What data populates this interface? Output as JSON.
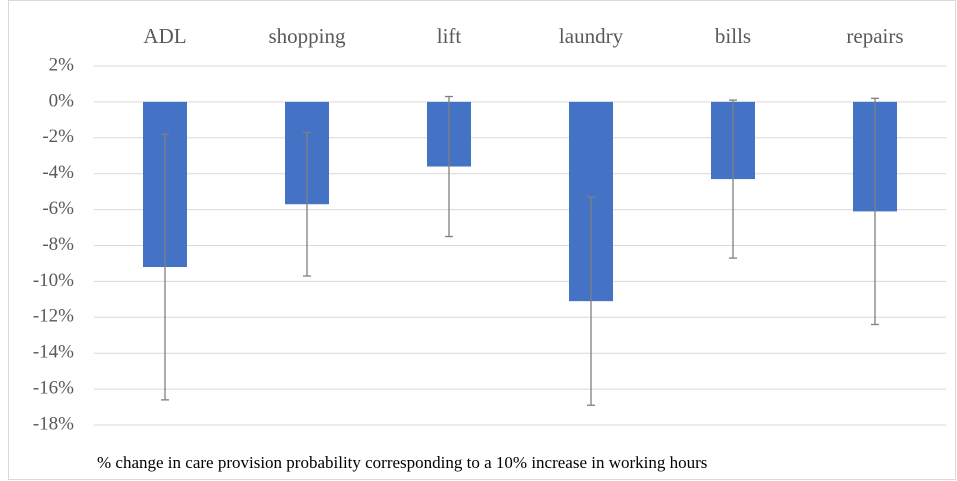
{
  "chart_data": {
    "type": "bar",
    "categories": [
      "ADL",
      "shopping",
      "lift",
      "laundry",
      "bills",
      "repairs"
    ],
    "values": [
      -9.2,
      -5.7,
      -3.6,
      -11.1,
      -4.3,
      -6.1
    ],
    "errors": [
      7.4,
      4.0,
      3.9,
      5.8,
      4.4,
      6.3
    ],
    "color": "#4472c4",
    "error_color": "#7f7f7f",
    "ylim": [
      -18,
      2
    ],
    "yticks": [
      {
        "value": 2,
        "label": "2%"
      },
      {
        "value": 0,
        "label": "0%"
      },
      {
        "value": -2,
        "label": "-2%"
      },
      {
        "value": -4,
        "label": "-4%"
      },
      {
        "value": -6,
        "label": "-6%"
      },
      {
        "value": -8,
        "label": "-8%"
      },
      {
        "value": -10,
        "label": "-10%"
      },
      {
        "value": -12,
        "label": "-12%"
      },
      {
        "value": -14,
        "label": "-14%"
      },
      {
        "value": -16,
        "label": "-16%"
      },
      {
        "value": -18,
        "label": "-18%"
      }
    ],
    "grid": true,
    "note": "% change in care provision probability corresponding to a 10% increase in working hours"
  }
}
